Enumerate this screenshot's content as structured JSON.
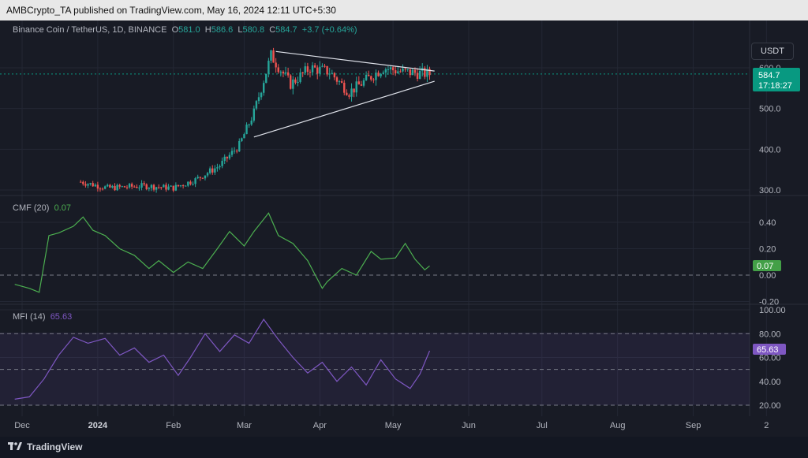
{
  "header": {
    "published": "AMBCrypto_TA published on TradingView.com, May 16, 2024 12:11 UTC+5:30"
  },
  "footer": {
    "brand": "TradingView"
  },
  "currency_button": "USDT",
  "price_legend": {
    "symbol": "Binance Coin / TetherUS, 1D, BINANCE",
    "o_label": "O",
    "o": "581.0",
    "h_label": "H",
    "h": "586.6",
    "l_label": "L",
    "l": "580.8",
    "c_label": "C",
    "c": "584.7",
    "change": "+3.7 (+0.64%)"
  },
  "price_badge": {
    "price": "584.7",
    "countdown": "17:18:27"
  },
  "cmf_legend": {
    "name": "CMF (20)",
    "value": "0.07"
  },
  "mfi_legend": {
    "name": "MFI (14)",
    "value": "65.63"
  },
  "colors": {
    "up": "#26a69a",
    "down": "#ef5350",
    "cmf": "#4caf50",
    "mfi": "#7e57c2",
    "background": "#181b25"
  },
  "chart_data": [
    {
      "type": "candlestick",
      "title": "Binance Coin / TetherUS, 1D, BINANCE",
      "x_ticks": [
        "Dec",
        "2024",
        "Feb",
        "Mar",
        "Apr",
        "May",
        "Jun",
        "Jul",
        "Aug",
        "Sep",
        "2"
      ],
      "y_ticks": [
        "300.0",
        "400.0",
        "500.0",
        "600.0"
      ],
      "ylim": [
        290,
        650
      ],
      "last_price": 584.7,
      "approx_closes": [
        {
          "date": "2023-12-25",
          "close": 320
        },
        {
          "date": "2024-01-05",
          "close": 305
        },
        {
          "date": "2024-01-20",
          "close": 310
        },
        {
          "date": "2024-02-01",
          "close": 305
        },
        {
          "date": "2024-02-10",
          "close": 325
        },
        {
          "date": "2024-02-20",
          "close": 360
        },
        {
          "date": "2024-02-28",
          "close": 410
        },
        {
          "date": "2024-03-05",
          "close": 490
        },
        {
          "date": "2024-03-12",
          "close": 630
        },
        {
          "date": "2024-03-20",
          "close": 560
        },
        {
          "date": "2024-03-28",
          "close": 600
        },
        {
          "date": "2024-04-05",
          "close": 590
        },
        {
          "date": "2024-04-13",
          "close": 540
        },
        {
          "date": "2024-04-20",
          "close": 570
        },
        {
          "date": "2024-04-27",
          "close": 600
        },
        {
          "date": "2024-05-05",
          "close": 590
        },
        {
          "date": "2024-05-16",
          "close": 584.7
        }
      ],
      "triangle_upper": [
        {
          "date": "2024-03-14",
          "value": 640
        },
        {
          "date": "2024-05-18",
          "value": 592
        }
      ],
      "triangle_lower": [
        {
          "date": "2024-03-05",
          "value": 430
        },
        {
          "date": "2024-05-18",
          "value": 567
        }
      ]
    },
    {
      "type": "line",
      "title": "CMF (20)",
      "y_ticks": [
        "-0.20",
        "0.00",
        "0.20",
        "0.40"
      ],
      "ylim": [
        -0.22,
        0.52
      ],
      "zero_line": 0.0,
      "series": [
        {
          "name": "CMF (20)",
          "x": [
            "2023-11-28",
            "2023-12-04",
            "2023-12-08",
            "2023-12-12",
            "2023-12-16",
            "2023-12-22",
            "2023-12-26",
            "2023-12-30",
            "2024-01-04",
            "2024-01-10",
            "2024-01-16",
            "2024-01-22",
            "2024-01-26",
            "2024-02-01",
            "2024-02-07",
            "2024-02-13",
            "2024-02-19",
            "2024-02-24",
            "2024-03-01",
            "2024-03-05",
            "2024-03-11",
            "2024-03-15",
            "2024-03-21",
            "2024-03-27",
            "2024-04-02",
            "2024-04-04",
            "2024-04-10",
            "2024-04-16",
            "2024-04-22",
            "2024-04-26",
            "2024-05-02",
            "2024-05-06",
            "2024-05-10",
            "2024-05-14",
            "2024-05-16"
          ],
          "values": [
            -0.07,
            -0.1,
            -0.13,
            0.3,
            0.32,
            0.37,
            0.44,
            0.34,
            0.3,
            0.2,
            0.15,
            0.05,
            0.11,
            0.02,
            0.1,
            0.05,
            0.2,
            0.33,
            0.22,
            0.33,
            0.47,
            0.3,
            0.24,
            0.11,
            -0.1,
            -0.05,
            0.05,
            0.0,
            0.18,
            0.12,
            0.13,
            0.24,
            0.12,
            0.04,
            0.07
          ]
        }
      ]
    },
    {
      "type": "line",
      "title": "MFI (14)",
      "y_ticks": [
        "20.00",
        "40.00",
        "60.00",
        "80.00",
        "100.00"
      ],
      "ylim": [
        18,
        102
      ],
      "bands": [
        20,
        50,
        80
      ],
      "series": [
        {
          "name": "MFI (14)",
          "x": [
            "2023-11-28",
            "2023-12-04",
            "2023-12-10",
            "2023-12-16",
            "2023-12-22",
            "2023-12-28",
            "2024-01-04",
            "2024-01-10",
            "2024-01-16",
            "2024-01-22",
            "2024-01-28",
            "2024-02-03",
            "2024-02-08",
            "2024-02-14",
            "2024-02-20",
            "2024-02-26",
            "2024-03-03",
            "2024-03-09",
            "2024-03-15",
            "2024-03-21",
            "2024-03-27",
            "2024-04-02",
            "2024-04-08",
            "2024-04-14",
            "2024-04-20",
            "2024-04-26",
            "2024-05-02",
            "2024-05-08",
            "2024-05-12",
            "2024-05-16"
          ],
          "values": [
            25,
            27,
            42,
            62,
            77,
            72,
            76,
            62,
            68,
            56,
            62,
            45,
            60,
            80,
            65,
            79,
            72,
            92,
            75,
            60,
            47,
            56,
            40,
            52,
            37,
            58,
            42,
            34,
            46,
            65.63
          ]
        }
      ]
    }
  ]
}
